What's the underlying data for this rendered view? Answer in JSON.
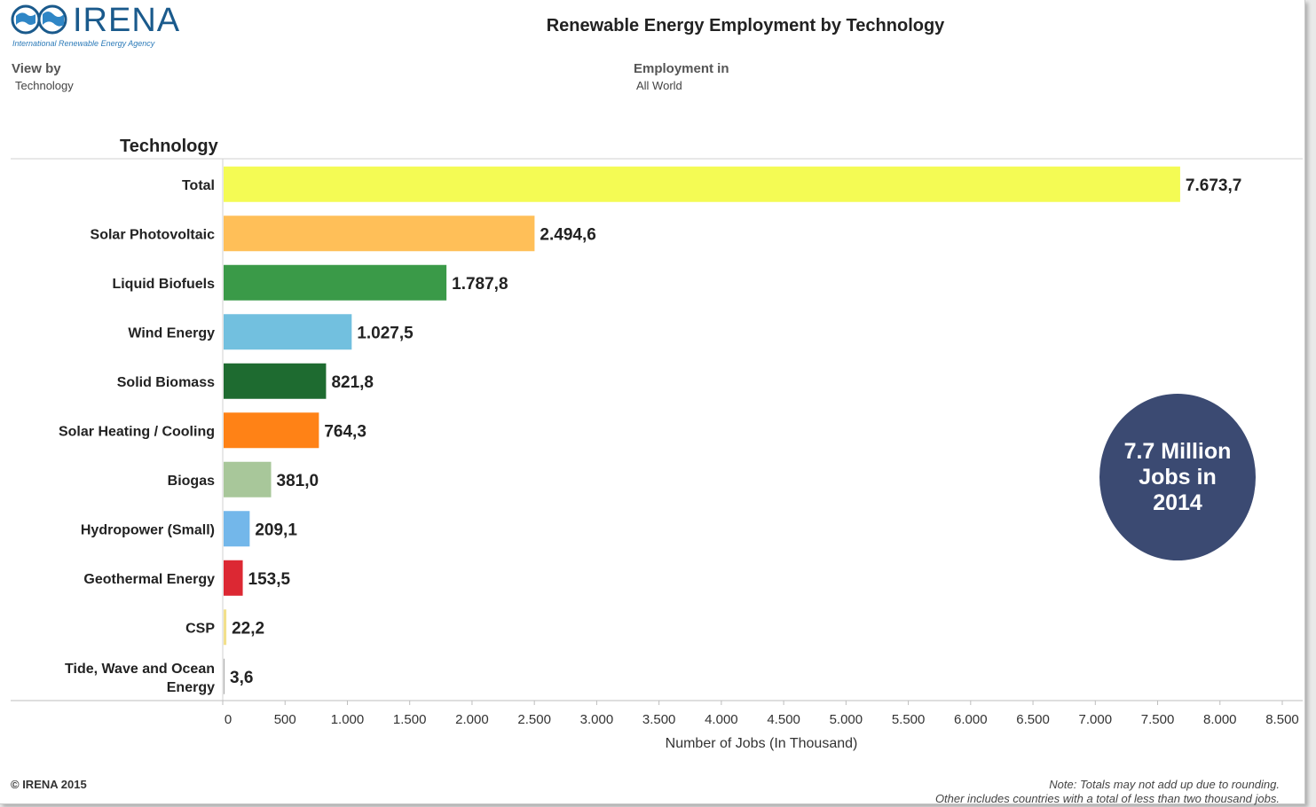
{
  "header": {
    "logo_text": "IRENA",
    "logo_subtitle": "International Renewable Energy Agency",
    "title": "Renewable Energy Employment by Technology"
  },
  "filters": {
    "view_by_label": "View by",
    "view_by_value": "Technology",
    "employment_label": "Employment in",
    "employment_value": "All World"
  },
  "row_header": "Technology",
  "badge": {
    "line1": "7.7 Million",
    "line2": "Jobs in 2014",
    "color": "#3b4a72"
  },
  "footer": {
    "copyright": "© IRENA 2015",
    "note1": "Note: Totals may not add up due to rounding.",
    "note2": "Other includes countries with a total of less than two thousand jobs."
  },
  "icons": [
    "globe-logo-icon"
  ],
  "chart_data": {
    "type": "bar",
    "orientation": "horizontal",
    "title": "Renewable Energy Employment by Technology",
    "xlabel": "Number of Jobs (In Thousand)",
    "ylabel": "Technology",
    "xlim": [
      0,
      8500
    ],
    "xticks": [
      0,
      500,
      1000,
      1500,
      2000,
      2500,
      3000,
      3500,
      4000,
      4500,
      5000,
      5500,
      6000,
      6500,
      7000,
      7500,
      8000,
      8500
    ],
    "xtick_labels": [
      "0",
      "500",
      "1.000",
      "1.500",
      "2.000",
      "2.500",
      "3.000",
      "3.500",
      "4.000",
      "4.500",
      "5.000",
      "5.500",
      "6.000",
      "6.500",
      "7.000",
      "7.500",
      "8.000",
      "8.500"
    ],
    "grid": false,
    "categories": [
      [
        "Total"
      ],
      [
        "Solar Photovoltaic"
      ],
      [
        "Liquid Biofuels"
      ],
      [
        "Wind Energy"
      ],
      [
        "Solid Biomass"
      ],
      [
        "Solar Heating / Cooling"
      ],
      [
        "Biogas"
      ],
      [
        "Hydropower (Small)"
      ],
      [
        "Geothermal Energy"
      ],
      [
        "CSP"
      ],
      [
        "Tide, Wave and Ocean",
        "Energy"
      ]
    ],
    "values": [
      7673.7,
      2494.6,
      1787.8,
      1027.5,
      821.8,
      764.3,
      381.0,
      209.1,
      153.5,
      22.2,
      3.6
    ],
    "value_labels": [
      "7.673,7",
      "2.494,6",
      "1.787,8",
      "1.027,5",
      "821,8",
      "764,3",
      "381,0",
      "209,1",
      "153,5",
      "22,2",
      "3,6"
    ],
    "colors": [
      "#f4fb54",
      "#ffbf58",
      "#3a9a48",
      "#72c0df",
      "#1e6b30",
      "#ff8216",
      "#a8c79a",
      "#73b7ea",
      "#dc2833",
      "#f2e08b",
      "#a7a7a7"
    ]
  }
}
